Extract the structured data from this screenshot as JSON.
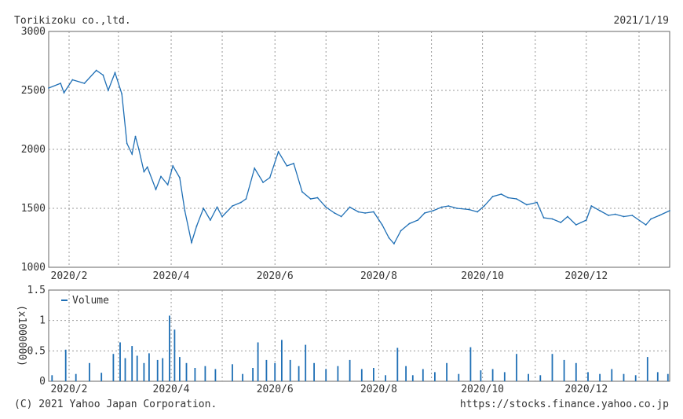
{
  "header": {
    "company": "Torikizoku co.,ltd.",
    "date": "2021/1/19"
  },
  "footer": {
    "copyright": "(C) 2021 Yahoo Japan Corporation.",
    "url": "https://stocks.finance.yahoo.co.jp"
  },
  "colors": {
    "line": "#1f6fb5",
    "grid": "#999999",
    "frame": "#666666"
  },
  "chart_data": [
    {
      "type": "line",
      "title": "",
      "ylim": [
        1000,
        3000
      ],
      "yticks": [
        "3000",
        "2500",
        "2000",
        "1500",
        "1000"
      ],
      "xticks": [
        "2020/2",
        "2020/4",
        "2020/6",
        "2020/8",
        "2020/10",
        "2020/12"
      ],
      "xrange": [
        "2020-01-20",
        "2021-01-19"
      ],
      "grid": true,
      "series": [
        {
          "x": [
            "2020-01-20",
            "2020-01-27",
            "2020-01-29",
            "2020-02-03",
            "2020-02-10",
            "2020-02-17",
            "2020-02-21",
            "2020-02-24",
            "2020-02-28",
            "2020-03-03",
            "2020-03-06",
            "2020-03-09",
            "2020-03-11",
            "2020-03-13",
            "2020-03-16",
            "2020-03-18",
            "2020-03-23",
            "2020-03-26",
            "2020-03-30",
            "2020-04-02",
            "2020-04-06",
            "2020-04-09",
            "2020-04-13",
            "2020-04-16",
            "2020-04-20",
            "2020-04-24",
            "2020-04-28",
            "2020-05-01",
            "2020-05-07",
            "2020-05-12",
            "2020-05-15",
            "2020-05-20",
            "2020-05-25",
            "2020-05-29",
            "2020-06-03",
            "2020-06-08",
            "2020-06-12",
            "2020-06-17",
            "2020-06-22",
            "2020-06-26",
            "2020-07-01",
            "2020-07-06",
            "2020-07-10",
            "2020-07-15",
            "2020-07-20",
            "2020-07-24",
            "2020-07-29",
            "2020-08-03",
            "2020-08-07",
            "2020-08-10",
            "2020-08-14",
            "2020-08-19",
            "2020-08-24",
            "2020-08-28",
            "2020-09-02",
            "2020-09-07",
            "2020-09-11",
            "2020-09-16",
            "2020-09-23",
            "2020-09-28",
            "2020-10-02",
            "2020-10-07",
            "2020-10-12",
            "2020-10-16",
            "2020-10-21",
            "2020-10-27",
            "2020-11-02",
            "2020-11-06",
            "2020-11-11",
            "2020-11-16",
            "2020-11-20",
            "2020-11-25",
            "2020-12-01",
            "2020-12-04",
            "2020-12-09",
            "2020-12-14",
            "2020-12-18",
            "2020-12-23",
            "2020-12-28",
            "2021-01-05",
            "2021-01-08",
            "2021-01-13",
            "2021-01-19"
          ],
          "y": [
            2520,
            2560,
            2480,
            2590,
            2560,
            2670,
            2630,
            2500,
            2650,
            2470,
            2050,
            1960,
            2110,
            2000,
            1810,
            1850,
            1660,
            1770,
            1700,
            1860,
            1760,
            1480,
            1210,
            1350,
            1500,
            1400,
            1510,
            1430,
            1520,
            1550,
            1580,
            1840,
            1720,
            1760,
            1980,
            1860,
            1880,
            1640,
            1580,
            1590,
            1510,
            1460,
            1430,
            1510,
            1470,
            1460,
            1470,
            1360,
            1250,
            1200,
            1310,
            1370,
            1400,
            1460,
            1480,
            1510,
            1520,
            1500,
            1490,
            1470,
            1520,
            1600,
            1620,
            1590,
            1580,
            1530,
            1550,
            1420,
            1410,
            1380,
            1430,
            1360,
            1400,
            1520,
            1480,
            1440,
            1450,
            1430,
            1440,
            1360,
            1410,
            1440,
            1480
          ]
        }
      ]
    },
    {
      "type": "bar",
      "title": "",
      "ylabel": "(x1000000)",
      "ylim": [
        0,
        1.5
      ],
      "yticks": [
        "1.5",
        "1",
        "0.5",
        "0"
      ],
      "xticks": [
        "2020/2",
        "2020/4",
        "2020/6",
        "2020/8",
        "2020/10",
        "2020/12"
      ],
      "grid": true,
      "legend": "top-left",
      "series": [
        {
          "name": "Volume",
          "x": [
            "2020-01-22",
            "2020-01-30",
            "2020-02-05",
            "2020-02-13",
            "2020-02-20",
            "2020-02-27",
            "2020-03-02",
            "2020-03-05",
            "2020-03-09",
            "2020-03-12",
            "2020-03-16",
            "2020-03-19",
            "2020-03-24",
            "2020-03-27",
            "2020-03-31",
            "2020-04-03",
            "2020-04-06",
            "2020-04-10",
            "2020-04-15",
            "2020-04-21",
            "2020-04-27",
            "2020-05-07",
            "2020-05-13",
            "2020-05-19",
            "2020-05-22",
            "2020-05-27",
            "2020-06-01",
            "2020-06-05",
            "2020-06-10",
            "2020-06-15",
            "2020-06-19",
            "2020-06-24",
            "2020-07-01",
            "2020-07-08",
            "2020-07-15",
            "2020-07-22",
            "2020-07-29",
            "2020-08-05",
            "2020-08-12",
            "2020-08-17",
            "2020-08-21",
            "2020-08-27",
            "2020-09-03",
            "2020-09-10",
            "2020-09-17",
            "2020-09-24",
            "2020-09-30",
            "2020-10-07",
            "2020-10-14",
            "2020-10-21",
            "2020-10-28",
            "2020-11-04",
            "2020-11-11",
            "2020-11-18",
            "2020-11-25",
            "2020-12-02",
            "2020-12-09",
            "2020-12-16",
            "2020-12-23",
            "2020-12-30",
            "2021-01-06",
            "2021-01-12",
            "2021-01-18"
          ],
          "values": [
            0.1,
            0.52,
            0.12,
            0.3,
            0.14,
            0.45,
            0.64,
            0.38,
            0.58,
            0.42,
            0.3,
            0.46,
            0.35,
            0.38,
            1.08,
            0.85,
            0.4,
            0.3,
            0.22,
            0.25,
            0.2,
            0.28,
            0.12,
            0.22,
            0.64,
            0.35,
            0.3,
            0.68,
            0.35,
            0.25,
            0.6,
            0.3,
            0.2,
            0.25,
            0.35,
            0.2,
            0.22,
            0.1,
            0.55,
            0.25,
            0.1,
            0.2,
            0.15,
            0.3,
            0.12,
            0.56,
            0.18,
            0.2,
            0.15,
            0.45,
            0.12,
            0.1,
            0.45,
            0.35,
            0.3,
            0.15,
            0.12,
            0.2,
            0.12,
            0.1,
            0.4,
            0.15,
            0.12
          ]
        }
      ]
    }
  ]
}
